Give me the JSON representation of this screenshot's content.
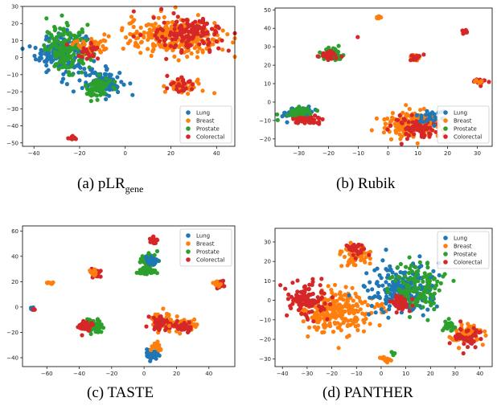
{
  "colors": {
    "Lung": "#1f77b4",
    "Breast": "#ff7f0e",
    "Prostate": "#2ca02c",
    "Colorectal": "#d62728"
  },
  "chart_data": [
    {
      "type": "scatter",
      "caption_prefix": "(a) pLR",
      "caption_sub": "gene",
      "legend": [
        "Lung",
        "Breast",
        "Prostate",
        "Colorectal"
      ],
      "legend_position": "lower-right",
      "xlim": [
        -45,
        48
      ],
      "ylim": [
        -52,
        30
      ],
      "xticks": [
        -40,
        -20,
        0,
        20,
        40
      ],
      "yticks": [
        -50,
        -40,
        -30,
        -20,
        -10,
        0,
        10,
        20,
        30
      ],
      "clusters": [
        {
          "series": "Lung",
          "cx": -28,
          "cy": 3,
          "rx": 10,
          "ry": 11,
          "n": 170
        },
        {
          "series": "Prostate",
          "cx": -25,
          "cy": 5,
          "rx": 9,
          "ry": 12,
          "n": 150
        },
        {
          "series": "Lung",
          "cx": -10,
          "cy": -15,
          "rx": 8,
          "ry": 7,
          "n": 90
        },
        {
          "series": "Prostate",
          "cx": -12,
          "cy": -18,
          "rx": 5,
          "ry": 6,
          "n": 70
        },
        {
          "series": "Breast",
          "cx": -14,
          "cy": 8,
          "rx": 7,
          "ry": 6,
          "n": 40
        },
        {
          "series": "Colorectal",
          "cx": -16,
          "cy": 4,
          "rx": 6,
          "ry": 5,
          "n": 25
        },
        {
          "series": "Breast",
          "cx": 22,
          "cy": 12,
          "rx": 20,
          "ry": 10,
          "n": 260
        },
        {
          "series": "Colorectal",
          "cx": 28,
          "cy": 14,
          "rx": 14,
          "ry": 9,
          "n": 140
        },
        {
          "series": "Breast",
          "cx": 26,
          "cy": -17,
          "rx": 7,
          "ry": 4,
          "n": 40
        },
        {
          "series": "Colorectal",
          "cx": 24,
          "cy": -16,
          "rx": 6,
          "ry": 4,
          "n": 25
        },
        {
          "series": "Colorectal",
          "cx": -23,
          "cy": -47,
          "rx": 1.5,
          "ry": 1.5,
          "n": 8
        }
      ]
    },
    {
      "type": "scatter",
      "caption_prefix": "(b) Rubik",
      "legend": [
        "Lung",
        "Breast",
        "Prostate",
        "Colorectal"
      ],
      "legend_position": "lower-right",
      "xlim": [
        -38,
        35
      ],
      "ylim": [
        -24,
        51
      ],
      "xticks": [
        -30,
        -20,
        -10,
        0,
        10,
        20,
        30
      ],
      "yticks": [
        -20,
        -10,
        0,
        10,
        20,
        30,
        40,
        50
      ],
      "clusters": [
        {
          "series": "Lung",
          "cx": -30,
          "cy": -6,
          "rx": 4,
          "ry": 3,
          "n": 70
        },
        {
          "series": "Prostate",
          "cx": -30,
          "cy": -6,
          "rx": 4,
          "ry": 3,
          "n": 60
        },
        {
          "series": "Colorectal",
          "cx": -27,
          "cy": -10,
          "rx": 4,
          "ry": 2,
          "n": 50
        },
        {
          "series": "Prostate",
          "cx": -19,
          "cy": 26,
          "rx": 3.5,
          "ry": 3,
          "n": 70
        },
        {
          "series": "Colorectal",
          "cx": -20,
          "cy": 25,
          "rx": 3,
          "ry": 2.5,
          "n": 30
        },
        {
          "series": "Breast",
          "cx": 8,
          "cy": -12,
          "rx": 8,
          "ry": 6,
          "n": 200
        },
        {
          "series": "Colorectal",
          "cx": 9,
          "cy": -14,
          "rx": 7,
          "ry": 5,
          "n": 80
        },
        {
          "series": "Lung",
          "cx": 14,
          "cy": -8,
          "rx": 4,
          "ry": 3,
          "n": 25
        },
        {
          "series": "Breast",
          "cx": 9,
          "cy": 24,
          "rx": 2,
          "ry": 1.5,
          "n": 20
        },
        {
          "series": "Colorectal",
          "cx": 9,
          "cy": 24,
          "rx": 2,
          "ry": 1.5,
          "n": 15
        },
        {
          "series": "Colorectal",
          "cx": 31,
          "cy": 11,
          "rx": 2,
          "ry": 1.5,
          "n": 20
        },
        {
          "series": "Breast",
          "cx": 31,
          "cy": 11,
          "rx": 1.5,
          "ry": 1,
          "n": 8
        },
        {
          "series": "Colorectal",
          "cx": 26,
          "cy": 38,
          "rx": 1,
          "ry": 0.8,
          "n": 10
        },
        {
          "series": "Breast",
          "cx": -3,
          "cy": 46,
          "rx": 1,
          "ry": 0.8,
          "n": 8
        },
        {
          "series": "Colorectal",
          "cx": -11,
          "cy": 35,
          "rx": 0.5,
          "ry": 0.5,
          "n": 1
        }
      ]
    },
    {
      "type": "scatter",
      "caption_prefix": "(c) TASTE",
      "legend": [
        "Lung",
        "Breast",
        "Prostate",
        "Colorectal"
      ],
      "legend_position": "upper-right",
      "xlim": [
        -75,
        56
      ],
      "ylim": [
        -47,
        64
      ],
      "xticks": [
        -60,
        -40,
        -20,
        0,
        20,
        40
      ],
      "yticks": [
        -40,
        -20,
        0,
        20,
        40,
        60
      ],
      "clusters": [
        {
          "series": "Prostate",
          "cx": 3,
          "cy": 37,
          "rx": 5,
          "ry": 5,
          "n": 60
        },
        {
          "series": "Lung",
          "cx": 4,
          "cy": 36,
          "rx": 4,
          "ry": 4,
          "n": 25
        },
        {
          "series": "Prostate",
          "cx": 2,
          "cy": 28,
          "rx": 5,
          "ry": 3,
          "n": 40
        },
        {
          "series": "Colorectal",
          "cx": 6,
          "cy": 52,
          "rx": 2,
          "ry": 2.5,
          "n": 25
        },
        {
          "series": "Colorectal",
          "cx": -30,
          "cy": 27,
          "rx": 3,
          "ry": 3,
          "n": 35
        },
        {
          "series": "Breast",
          "cx": -31,
          "cy": 27,
          "rx": 2.5,
          "ry": 2.5,
          "n": 15
        },
        {
          "series": "Prostate",
          "cx": -31,
          "cy": -15,
          "rx": 5,
          "ry": 5,
          "n": 70
        },
        {
          "series": "Colorectal",
          "cx": -36,
          "cy": -15,
          "rx": 4,
          "ry": 4,
          "n": 40
        },
        {
          "series": "Breast",
          "cx": -58,
          "cy": 19,
          "rx": 1.5,
          "ry": 1,
          "n": 10
        },
        {
          "series": "Lung",
          "cx": -69,
          "cy": -1,
          "rx": 1,
          "ry": 1,
          "n": 6
        },
        {
          "series": "Colorectal",
          "cx": -68,
          "cy": -2,
          "rx": 1,
          "ry": 1,
          "n": 4
        },
        {
          "series": "Breast",
          "cx": 12,
          "cy": -12,
          "rx": 7,
          "ry": 6,
          "n": 90
        },
        {
          "series": "Colorectal",
          "cx": 10,
          "cy": -13,
          "rx": 6,
          "ry": 5,
          "n": 45
        },
        {
          "series": "Breast",
          "cx": 25,
          "cy": -15,
          "rx": 6,
          "ry": 4,
          "n": 60
        },
        {
          "series": "Colorectal",
          "cx": 24,
          "cy": -16,
          "rx": 5,
          "ry": 3.5,
          "n": 35
        },
        {
          "series": "Lung",
          "cx": 4,
          "cy": -37,
          "rx": 4,
          "ry": 3,
          "n": 50
        },
        {
          "series": "Breast",
          "cx": 8,
          "cy": -31,
          "rx": 3,
          "ry": 3,
          "n": 20
        },
        {
          "series": "Colorectal",
          "cx": 46,
          "cy": 18,
          "rx": 3,
          "ry": 2.5,
          "n": 25
        },
        {
          "series": "Breast",
          "cx": 45,
          "cy": 18,
          "rx": 2,
          "ry": 2,
          "n": 10
        }
      ]
    },
    {
      "type": "scatter",
      "caption_prefix": "(d) PANTHER",
      "legend": [
        "Lung",
        "Breast",
        "Prostate",
        "Colorectal"
      ],
      "legend_position": "upper-right",
      "xlim": [
        -43,
        45
      ],
      "ylim": [
        -34,
        37
      ],
      "xticks": [
        -40,
        -30,
        -20,
        -10,
        0,
        10,
        20,
        30,
        40
      ],
      "yticks": [
        -30,
        -20,
        -10,
        0,
        10,
        20,
        30
      ],
      "clusters": [
        {
          "series": "Breast",
          "cx": -18,
          "cy": -6,
          "rx": 13,
          "ry": 10,
          "n": 260
        },
        {
          "series": "Colorectal",
          "cx": -30,
          "cy": 0,
          "rx": 8,
          "ry": 9,
          "n": 100
        },
        {
          "series": "Breast",
          "cx": -10,
          "cy": 23,
          "rx": 5,
          "ry": 5,
          "n": 60
        },
        {
          "series": "Colorectal",
          "cx": -10,
          "cy": 26,
          "rx": 4,
          "ry": 3,
          "n": 30
        },
        {
          "series": "Lung",
          "cx": 8,
          "cy": 5,
          "rx": 12,
          "ry": 12,
          "n": 230
        },
        {
          "series": "Prostate",
          "cx": 14,
          "cy": 6,
          "rx": 10,
          "ry": 11,
          "n": 130
        },
        {
          "series": "Colorectal",
          "cx": 8,
          "cy": -2,
          "rx": 4,
          "ry": 4,
          "n": 40
        },
        {
          "series": "Breast",
          "cx": 34,
          "cy": -17,
          "rx": 6,
          "ry": 5,
          "n": 70
        },
        {
          "series": "Colorectal",
          "cx": 34,
          "cy": -19,
          "rx": 5,
          "ry": 4,
          "n": 40
        },
        {
          "series": "Prostate",
          "cx": 27,
          "cy": -13,
          "rx": 3,
          "ry": 3,
          "n": 25
        },
        {
          "series": "Breast",
          "cx": 2,
          "cy": -30,
          "rx": 2,
          "ry": 1.5,
          "n": 15
        },
        {
          "series": "Prostate",
          "cx": 5,
          "cy": -27,
          "rx": 1,
          "ry": 1,
          "n": 5
        }
      ]
    }
  ]
}
